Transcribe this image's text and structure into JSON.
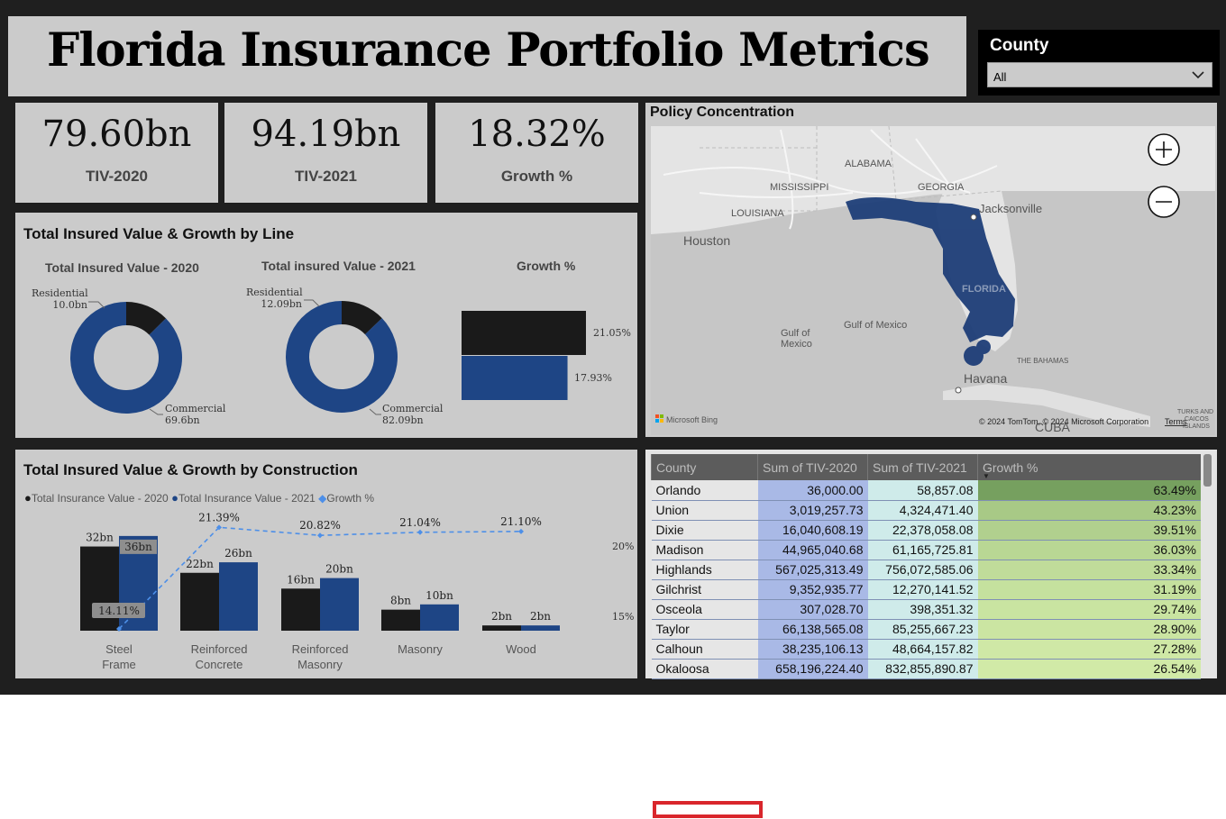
{
  "header": {
    "title": "Florida Insurance Portfolio Metrics"
  },
  "slicer": {
    "title": "County",
    "value": "All"
  },
  "kpis": [
    {
      "value": "79.60bn",
      "label": "TIV-2020"
    },
    {
      "value": "94.19bn",
      "label": "TIV-2021"
    },
    {
      "value": "18.32%",
      "label": "Growth %"
    }
  ],
  "colors": {
    "dark": "#1a1a1a",
    "blue": "#1e4585",
    "panel": "#cbcbcb",
    "line": "#4d8fe8"
  },
  "line_panel": {
    "title": "Total Insured Value & Growth by Line",
    "donut2020_title": "Total Insured Value - 2020",
    "donut2021_title": "Total insured Value - 2021",
    "growth_title": "Growth %",
    "res_label": "Residential",
    "com_label": "Commercial",
    "res2020": "10.0bn",
    "com2020": "69.6bn",
    "res2021": "12.09bn",
    "com2021": "82.09bn",
    "growth_dark": "21.05%",
    "growth_blue": "17.93%"
  },
  "cons_panel": {
    "title": "Total Insured Value & Growth by Construction",
    "legend_2020": "Total Insurance Value - 2020",
    "legend_2021": "Total Insurance Value - 2021",
    "legend_growth": "Growth %",
    "axis_20": "20%",
    "axis_15": "15%"
  },
  "map": {
    "title": "Policy Concentration",
    "labels": {
      "alabama": "ALABAMA",
      "mississippi": "MISSISSIPPI",
      "georgia": "GEORGIA",
      "louisiana": "LOUISIANA",
      "houston": "Houston",
      "jacksonville": "Jacksonville",
      "florida": "FLORIDA",
      "gulf1": "Gulf of",
      "gulf2": "Mexico",
      "gulfmex": "Gulf of Mexico",
      "bahamas": "THE BAHAMAS",
      "havana": "Havana",
      "cuba": "CUBA",
      "turks1": "TURKS AND",
      "turks2": "CAICOS",
      "turks3": "ISLANDS"
    },
    "bing": "Microsoft Bing",
    "copyright": "© 2024 TomTom, © 2024 Microsoft Corporation",
    "terms": "Terms"
  },
  "chart_data": [
    {
      "type": "pie",
      "title": "Total Insured Value - 2020",
      "categories": [
        "Residential",
        "Commercial"
      ],
      "values": [
        10.0,
        69.6
      ]
    },
    {
      "type": "pie",
      "title": "Total insured Value - 2021",
      "categories": [
        "Residential",
        "Commercial"
      ],
      "values": [
        12.09,
        82.09
      ]
    },
    {
      "type": "bar",
      "title": "Growth %",
      "values": [
        21.05,
        17.93
      ],
      "value_labels": [
        "21.05%",
        "17.93%"
      ]
    },
    {
      "type": "bar",
      "title": "Total Insured Value & Growth by Construction",
      "categories": [
        "Steel Frame",
        "Reinforced Concrete",
        "Reinforced Masonry",
        "Masonry",
        "Wood"
      ],
      "series": [
        {
          "name": "Total Insurance Value - 2020",
          "values": [
            32,
            22,
            16,
            8,
            2
          ],
          "labels": [
            "32bn",
            "22bn",
            "16bn",
            "8bn",
            "2bn"
          ]
        },
        {
          "name": "Total Insurance Value - 2021",
          "values": [
            36,
            26,
            20,
            10,
            2
          ],
          "labels": [
            "36bn",
            "26bn",
            "20bn",
            "10bn",
            "2bn"
          ]
        },
        {
          "name": "Growth %",
          "type": "line",
          "values": [
            14.11,
            21.39,
            20.82,
            21.04,
            21.1
          ],
          "labels": [
            "14.11%",
            "21.39%",
            "20.82%",
            "21.04%",
            "21.10%"
          ]
        }
      ],
      "y2_ticks": [
        "20%",
        "15%"
      ]
    }
  ],
  "table": {
    "headers": [
      "County",
      "Sum of TIV-2020",
      "Sum of TIV-2021",
      "Growth %"
    ],
    "rows": [
      {
        "county": "Orlando",
        "tiv2020": "36,000.00",
        "tiv2021": "58,857.08",
        "growth": "63.49%",
        "g": 63.49
      },
      {
        "county": "Union",
        "tiv2020": "3,019,257.73",
        "tiv2021": "4,324,471.40",
        "growth": "43.23%",
        "g": 43.23
      },
      {
        "county": "Dixie",
        "tiv2020": "16,040,608.19",
        "tiv2021": "22,378,058.08",
        "growth": "39.51%",
        "g": 39.51
      },
      {
        "county": "Madison",
        "tiv2020": "44,965,040.68",
        "tiv2021": "61,165,725.81",
        "growth": "36.03%",
        "g": 36.03
      },
      {
        "county": "Highlands",
        "tiv2020": "567,025,313.49",
        "tiv2021": "756,072,585.06",
        "growth": "33.34%",
        "g": 33.34
      },
      {
        "county": "Gilchrist",
        "tiv2020": "9,352,935.77",
        "tiv2021": "12,270,141.52",
        "growth": "31.19%",
        "g": 31.19
      },
      {
        "county": "Osceola",
        "tiv2020": "307,028.70",
        "tiv2021": "398,351.32",
        "growth": "29.74%",
        "g": 29.74
      },
      {
        "county": "Taylor",
        "tiv2020": "66,138,565.08",
        "tiv2021": "85,255,667.23",
        "growth": "28.90%",
        "g": 28.9
      },
      {
        "county": "Calhoun",
        "tiv2020": "38,235,106.13",
        "tiv2021": "48,664,157.82",
        "growth": "27.28%",
        "g": 27.28
      },
      {
        "county": "Okaloosa",
        "tiv2020": "658,196,224.40",
        "tiv2021": "832,855,890.87",
        "growth": "26.54%",
        "g": 26.54
      }
    ]
  }
}
